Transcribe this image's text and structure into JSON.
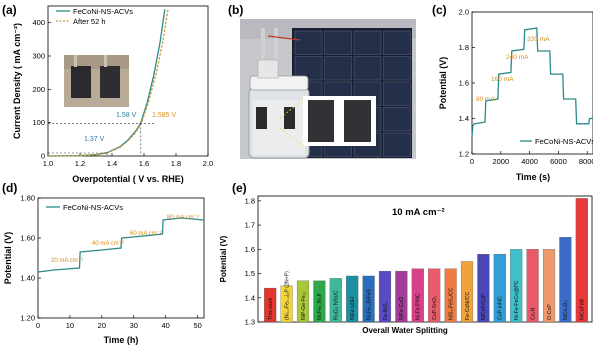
{
  "panels": {
    "a": {
      "label": "(a)",
      "legend": [
        "FeCoNi-NS-ACVs",
        "After 52 h"
      ],
      "annotations": [
        "1.58 V",
        "1.585 V",
        "1.37 V"
      ]
    },
    "b": {
      "label": "(b)"
    },
    "c": {
      "label": "(c)",
      "legend": [
        "FeCoNi-NS-ACVs"
      ]
    },
    "d": {
      "label": "(d)",
      "legend": [
        "FeCoNi-NS-ACVs"
      ]
    },
    "e": {
      "label": "(e)",
      "annotation": "10 mA cm⁻²"
    }
  },
  "colors": {
    "curve": "#2a8a8a",
    "dashed": "#c79a3a",
    "annotation_teal": "#2a7fa0",
    "annotation_orange": "#d98c1a"
  },
  "chart_data": [
    {
      "id": "a",
      "type": "line",
      "xlabel": "Overpotential ( V vs. RHE)",
      "ylabel": "Current Density ( mA cm⁻²)",
      "xlim": [
        1.0,
        2.0
      ],
      "ylim": [
        0,
        450
      ],
      "xticks": [
        1.0,
        1.2,
        1.4,
        1.6,
        1.8,
        2.0
      ],
      "yticks": [
        0,
        100,
        200,
        300,
        400
      ],
      "series": [
        {
          "name": "FeCoNi-NS-ACVs",
          "style": "solid",
          "x": [
            1.0,
            1.2,
            1.3,
            1.37,
            1.45,
            1.5,
            1.55,
            1.58,
            1.62,
            1.66,
            1.7,
            1.73
          ],
          "y": [
            0,
            1,
            4,
            10,
            28,
            48,
            76,
            100,
            160,
            240,
            340,
            440
          ]
        },
        {
          "name": "After 52 h",
          "style": "dashed",
          "x": [
            1.0,
            1.2,
            1.3,
            1.37,
            1.45,
            1.5,
            1.55,
            1.585,
            1.63,
            1.68,
            1.72,
            1.75
          ],
          "y": [
            0,
            1,
            4,
            10,
            26,
            45,
            72,
            100,
            165,
            255,
            350,
            440
          ]
        }
      ]
    },
    {
      "id": "c",
      "type": "line",
      "xlabel": "Time (s)",
      "ylabel": "Potential (V)",
      "xlim": [
        0,
        8400
      ],
      "ylim": [
        1.2,
        2.0
      ],
      "xticks": [
        0,
        2000,
        4000,
        6000,
        8000
      ],
      "yticks": [
        1.2,
        1.4,
        1.6,
        1.8,
        2.0
      ],
      "series": [
        {
          "name": "FeCoNi-NS-ACVs",
          "x": [
            0,
            60,
            150,
            900,
            960,
            1800,
            1860,
            2700,
            2760,
            3600,
            3660,
            4500,
            4560,
            5400,
            5460,
            6300,
            6360,
            7200,
            7260,
            8100,
            8160,
            8400
          ],
          "y": [
            1.3,
            1.36,
            1.37,
            1.38,
            1.5,
            1.51,
            1.65,
            1.66,
            1.78,
            1.79,
            1.9,
            1.91,
            1.78,
            1.78,
            1.65,
            1.65,
            1.51,
            1.51,
            1.37,
            1.37,
            1.4,
            1.4
          ]
        }
      ],
      "annotations": [
        "80 mA",
        "160 mA",
        "240 mA",
        "320 mA"
      ]
    },
    {
      "id": "d",
      "type": "line",
      "xlabel": "Time (h)",
      "ylabel": "Potential (V)",
      "xlim": [
        0,
        52
      ],
      "ylim": [
        1.2,
        1.8
      ],
      "xticks": [
        0,
        10,
        20,
        30,
        40,
        50
      ],
      "yticks": [
        1.2,
        1.4,
        1.6,
        1.8
      ],
      "series": [
        {
          "name": "FeCoNi-NS-ACVs",
          "x": [
            0,
            5,
            13,
            13.2,
            20,
            26,
            26.2,
            33,
            39,
            39.2,
            45,
            52
          ],
          "y": [
            1.43,
            1.44,
            1.45,
            1.53,
            1.54,
            1.55,
            1.6,
            1.61,
            1.62,
            1.69,
            1.7,
            1.69
          ]
        }
      ],
      "annotations": [
        "20 mA cm⁻²",
        "40 mA cm⁻²",
        "60 mA cm⁻²",
        "80 mA cm⁻²"
      ]
    },
    {
      "id": "e",
      "type": "bar",
      "xlabel": "Overall Water Splitting",
      "ylabel": "Potential (V)",
      "ylim": [
        1.3,
        1.82
      ],
      "yticks": [
        1.3,
        1.4,
        1.5,
        1.6,
        1.7,
        1.8
      ],
      "categories": [
        "This work",
        "(Ni₀.₇Fe₀.₃)₂P (2N+P)",
        "NiP-Ge-Fe₁₂",
        "Ni₂Fe₁₂Ni₂P",
        "RuCu NSs/C",
        "NiFe LDH",
        "Ni₂Fe₁₂NiFeS",
        "Fe-NiS₂",
        "NiFe-CoO",
        "Ni-Fe-P/NC",
        "CoP-SnO₂",
        "NiS₂-FeS₂/CC",
        "Fe-CoNi/CC",
        "NiCoP/CoP",
        "CoP-InNC",
        "Ni-Fe-FeCo@PC",
        "Co₂N",
        "O-CoP",
        "NiCo₂O₄",
        "NiCoFeB"
      ],
      "values": [
        1.44,
        1.45,
        1.47,
        1.47,
        1.48,
        1.49,
        1.49,
        1.51,
        1.51,
        1.52,
        1.52,
        1.52,
        1.55,
        1.58,
        1.58,
        1.6,
        1.6,
        1.6,
        1.65,
        1.81
      ],
      "colors": [
        "#e0362e",
        "#f2d43a",
        "#a8c83a",
        "#2ea84a",
        "#3fb89a",
        "#1c8fa3",
        "#2a6fbf",
        "#5a4bc2",
        "#a23d97",
        "#d9408a",
        "#ea5a6a",
        "#ef7c3f",
        "#f2a23a",
        "#4848b8",
        "#2f9fd6",
        "#3fbfc8",
        "#e85a6a",
        "#ef9a6a",
        "#3a6cc8",
        "#e83a3a"
      ]
    }
  ]
}
